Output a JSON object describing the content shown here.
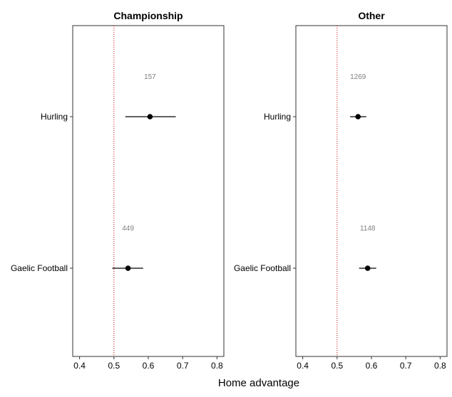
{
  "chart_data": {
    "type": "dot-interval",
    "xlabel": "Home advantage",
    "xlim": [
      0.38,
      0.82
    ],
    "xticks": [
      0.4,
      0.5,
      0.6,
      0.7,
      0.8
    ],
    "xtick_labels": [
      "0.4",
      "0.5",
      "0.6",
      "0.7",
      "0.8"
    ],
    "reference_line": 0.5,
    "reference_color": "#cc0000",
    "point_color": "#000000",
    "categories": [
      "Hurling",
      "Gaelic Football"
    ],
    "facets": [
      {
        "title": "Championship",
        "points": [
          {
            "category": "Hurling",
            "estimate": 0.605,
            "lower": 0.533,
            "upper": 0.68,
            "n": "157"
          },
          {
            "category": "Gaelic Football",
            "estimate": 0.541,
            "lower": 0.495,
            "upper": 0.585,
            "n": "449"
          }
        ]
      },
      {
        "title": "Other",
        "points": [
          {
            "category": "Hurling",
            "estimate": 0.561,
            "lower": 0.538,
            "upper": 0.585,
            "n": "1269"
          },
          {
            "category": "Gaelic Football",
            "estimate": 0.589,
            "lower": 0.564,
            "upper": 0.614,
            "n": "1148"
          }
        ]
      }
    ]
  }
}
